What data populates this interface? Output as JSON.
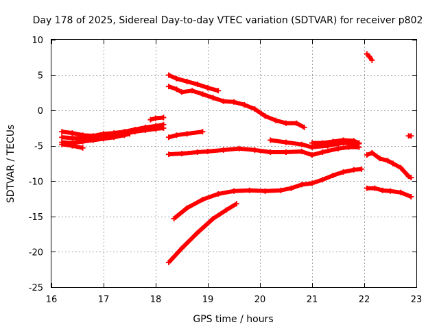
{
  "chart_data": {
    "type": "scatter",
    "title": "Day 178 of 2025, Sidereal Day-to-day VTEC variation (SDTVAR) for receiver p802",
    "xlabel": "GPS time / hours",
    "ylabel": "SDTVAR / TECUs",
    "xlim": [
      16,
      23
    ],
    "ylim": [
      -25,
      10
    ],
    "xticks": [
      16,
      17,
      18,
      19,
      20,
      21,
      22,
      23
    ],
    "yticks": [
      -25,
      -20,
      -15,
      -10,
      -5,
      0,
      5,
      10
    ],
    "grid": true,
    "legend": "none",
    "marker": "+",
    "color": "#ff0000",
    "series": [
      {
        "name": "trace-1",
        "x": [
          16.2,
          16.4,
          16.6,
          16.8,
          17.0,
          17.2,
          17.4,
          17.6,
          17.8,
          18.0,
          18.15
        ],
        "y": [
          -3.0,
          -3.2,
          -3.5,
          -3.6,
          -3.3,
          -3.2,
          -3.0,
          -2.7,
          -2.4,
          -2.2,
          -2.0
        ]
      },
      {
        "name": "trace-2",
        "x": [
          16.2,
          16.4,
          16.6,
          16.8,
          17.0,
          17.2,
          17.4,
          17.6,
          17.8,
          18.0,
          18.15
        ],
        "y": [
          -3.8,
          -3.9,
          -4.0,
          -4.0,
          -3.8,
          -3.6,
          -3.3,
          -3.0,
          -2.8,
          -2.6,
          -2.5
        ]
      },
      {
        "name": "trace-3",
        "x": [
          16.2,
          16.4,
          16.6,
          16.8,
          17.0,
          17.2,
          17.4,
          17.5
        ],
        "y": [
          -4.5,
          -4.6,
          -4.4,
          -4.2,
          -4.0,
          -3.8,
          -3.5,
          -3.3
        ]
      },
      {
        "name": "trace-4",
        "x": [
          16.2,
          16.4,
          16.6
        ],
        "y": [
          -4.8,
          -5.0,
          -5.3
        ]
      },
      {
        "name": "trace-5",
        "x": [
          17.9,
          18.0,
          18.15
        ],
        "y": [
          -1.3,
          -1.1,
          -1.0
        ]
      },
      {
        "name": "trace-6",
        "x": [
          18.25,
          18.4,
          18.6,
          18.8,
          19.0,
          19.2
        ],
        "y": [
          5.0,
          4.5,
          4.1,
          3.7,
          3.2,
          2.8
        ]
      },
      {
        "name": "trace-7",
        "x": [
          18.25,
          18.4,
          18.5,
          18.7,
          18.9,
          19.1,
          19.3,
          19.5,
          19.7,
          19.9,
          20.1,
          20.3,
          20.5,
          20.7,
          20.85
        ],
        "y": [
          3.4,
          3.0,
          2.6,
          2.8,
          2.3,
          1.8,
          1.3,
          1.2,
          0.8,
          0.2,
          -0.8,
          -1.4,
          -1.8,
          -1.8,
          -2.4
        ]
      },
      {
        "name": "trace-8",
        "x": [
          18.25,
          18.4,
          18.6,
          18.9
        ],
        "y": [
          -3.8,
          -3.5,
          -3.3,
          -3.0
        ]
      },
      {
        "name": "trace-9",
        "x": [
          18.25,
          18.5,
          18.8,
          19.0,
          19.3,
          19.6,
          19.9,
          20.2,
          20.5,
          20.8,
          21.0,
          21.2,
          21.5,
          21.7,
          21.9
        ],
        "y": [
          -6.2,
          -6.1,
          -5.9,
          -5.8,
          -5.6,
          -5.4,
          -5.6,
          -5.9,
          -5.9,
          -5.8,
          -6.3,
          -5.9,
          -5.4,
          -5.2,
          -5.2
        ]
      },
      {
        "name": "trace-10",
        "x": [
          20.2,
          20.5,
          20.8,
          21.0,
          21.3,
          21.6,
          21.9
        ],
        "y": [
          -4.2,
          -4.5,
          -4.8,
          -5.2,
          -5.0,
          -4.6,
          -4.7
        ]
      },
      {
        "name": "trace-11",
        "x": [
          21.0,
          21.2,
          21.4,
          21.6,
          21.8,
          21.9
        ],
        "y": [
          -4.6,
          -4.6,
          -4.4,
          -4.2,
          -4.3,
          -4.6
        ]
      },
      {
        "name": "trace-12",
        "x": [
          18.35,
          18.6,
          18.9,
          19.2,
          19.5,
          19.8,
          20.1,
          20.4,
          20.6,
          20.8,
          21.0,
          21.2,
          21.4,
          21.6,
          21.8,
          21.95
        ],
        "y": [
          -15.3,
          -13.8,
          -12.6,
          -11.8,
          -11.4,
          -11.3,
          -11.4,
          -11.3,
          -11.0,
          -10.5,
          -10.3,
          -9.8,
          -9.2,
          -8.7,
          -8.4,
          -8.3
        ]
      },
      {
        "name": "trace-13",
        "x": [
          18.25,
          18.5,
          18.8,
          19.1,
          19.35,
          19.55
        ],
        "y": [
          -21.5,
          -19.5,
          -17.3,
          -15.3,
          -14.1,
          -13.2
        ]
      },
      {
        "name": "trace-14",
        "x": [
          22.05,
          22.1,
          22.15
        ],
        "y": [
          8.0,
          7.6,
          7.1
        ]
      },
      {
        "name": "trace-15",
        "x": [
          22.05,
          22.15,
          22.3,
          22.45,
          22.55,
          22.7,
          22.85,
          22.9
        ],
        "y": [
          -6.3,
          -6.0,
          -6.8,
          -7.1,
          -7.5,
          -8.1,
          -9.3,
          -9.5
        ]
      },
      {
        "name": "trace-16",
        "x": [
          22.05,
          22.2,
          22.35,
          22.5,
          22.7,
          22.9
        ],
        "y": [
          -11.0,
          -11.0,
          -11.3,
          -11.4,
          -11.6,
          -12.2
        ]
      },
      {
        "name": "trace-17",
        "x": [
          22.85,
          22.9
        ],
        "y": [
          -3.6,
          -3.6
        ]
      }
    ]
  }
}
